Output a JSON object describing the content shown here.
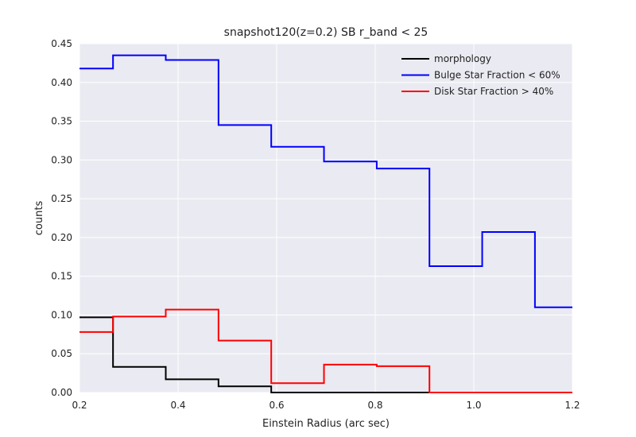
{
  "chart_data": {
    "type": "line",
    "step": "post",
    "title": "snapshot120(z=0.2) SB r_band < 25",
    "xlabel": "Einstein Radius (arc sec)",
    "ylabel": "counts",
    "xlim": [
      0.2,
      1.2
    ],
    "ylim": [
      0.0,
      0.45
    ],
    "xticks": [
      "0.2",
      "0.4",
      "0.6",
      "0.8",
      "1.0",
      "1.2"
    ],
    "yticks": [
      "0.00",
      "0.05",
      "0.10",
      "0.15",
      "0.20",
      "0.25",
      "0.30",
      "0.35",
      "0.40",
      "0.45"
    ],
    "grid": true,
    "legend_position": "top-right",
    "bin_edges": [
      0.2,
      0.268,
      0.375,
      0.482,
      0.589,
      0.696,
      0.803,
      0.91,
      1.017,
      1.124,
      1.2
    ],
    "series": [
      {
        "name": "morphology",
        "color": "#000000",
        "values": [
          0.097,
          0.033,
          0.017,
          0.008,
          0.0,
          0.0,
          0.0,
          0.0,
          0.0,
          0.0
        ]
      },
      {
        "name": "Bulge Star Fraction < 60%",
        "color": "#0000ff",
        "values": [
          0.418,
          0.435,
          0.429,
          0.345,
          0.317,
          0.298,
          0.289,
          0.163,
          0.207,
          0.11
        ]
      },
      {
        "name": "Disk Star Fraction > 40%",
        "color": "#ff0000",
        "values": [
          0.078,
          0.098,
          0.107,
          0.067,
          0.012,
          0.036,
          0.034,
          0.0,
          0.0,
          0.0
        ]
      }
    ]
  }
}
